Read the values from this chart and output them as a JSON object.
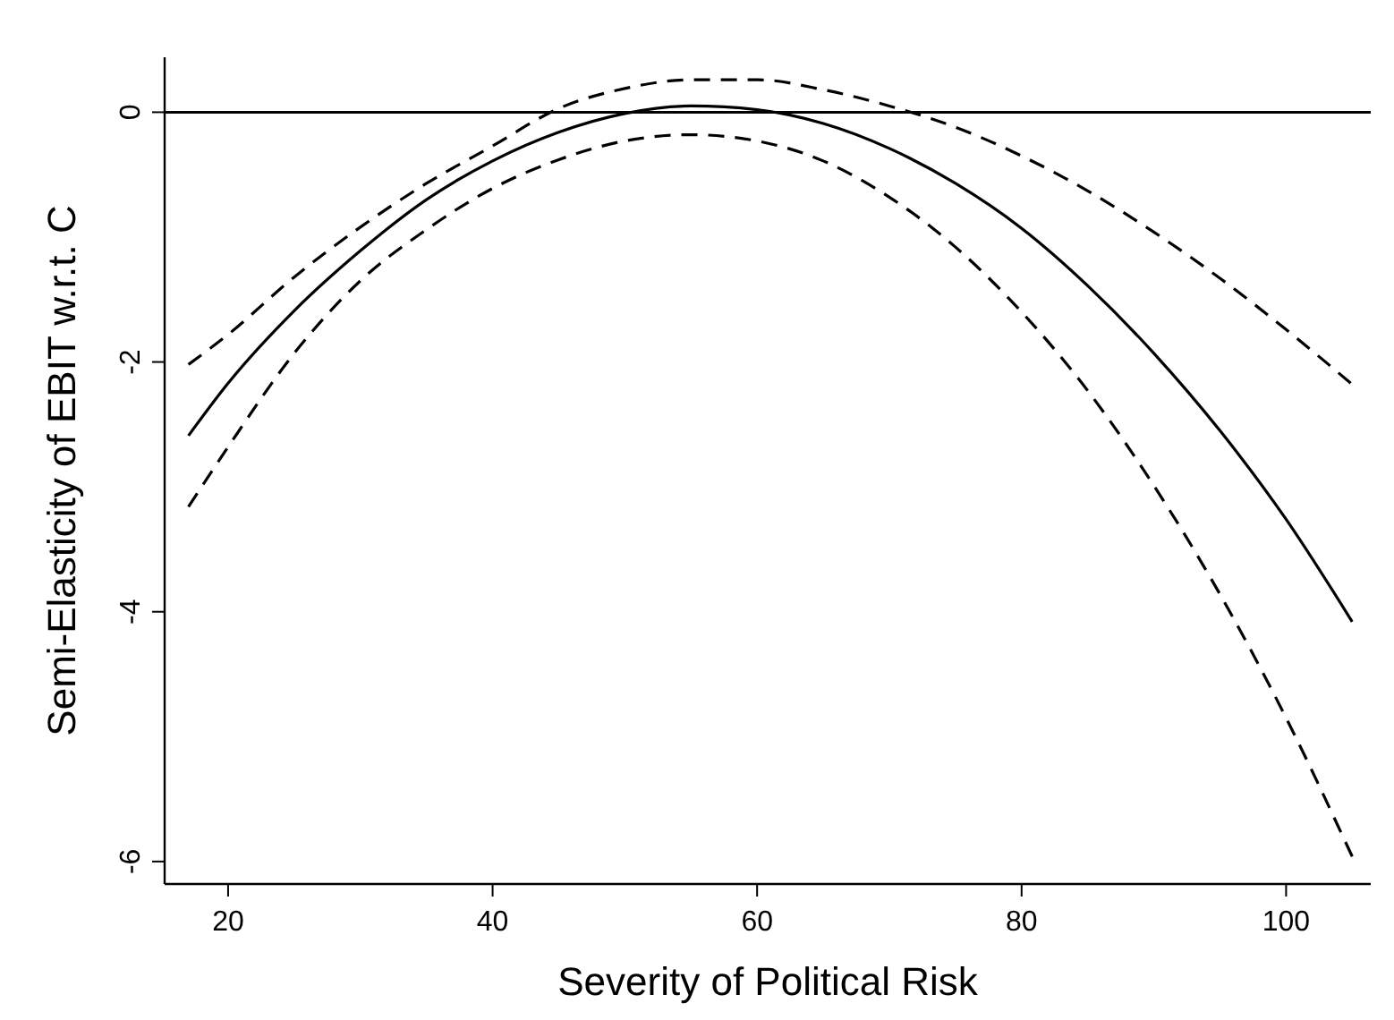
{
  "chart_data": {
    "type": "line",
    "xlabel": "Severity of Political Risk",
    "ylabel": "Semi-Elasticity of EBIT w.r.t. C",
    "x": [
      17,
      20,
      25,
      30,
      35,
      40,
      45,
      50,
      55,
      60,
      65,
      70,
      75,
      80,
      85,
      90,
      95,
      100,
      105
    ],
    "series": [
      {
        "color": "#000000",
        "line_style": "solid",
        "values": [
          -2.59,
          -2.17,
          -1.59,
          -1.11,
          -0.7,
          -0.39,
          -0.16,
          -0.01,
          0.05,
          0.02,
          -0.09,
          -0.29,
          -0.57,
          -0.93,
          -1.39,
          -1.93,
          -2.55,
          -3.26,
          -4.08
        ]
      },
      {
        "color": "#000000",
        "line_style": "dashed",
        "values": [
          -2.02,
          -1.78,
          -1.32,
          -0.92,
          -0.57,
          -0.27,
          0.03,
          0.19,
          0.26,
          0.26,
          0.18,
          0.05,
          -0.12,
          -0.35,
          -0.63,
          -0.96,
          -1.33,
          -1.74,
          -2.18
        ]
      },
      {
        "color": "#000000",
        "line_style": "dashed",
        "values": [
          -3.16,
          -2.68,
          -1.93,
          -1.35,
          -0.94,
          -0.61,
          -0.38,
          -0.23,
          -0.18,
          -0.23,
          -0.39,
          -0.68,
          -1.08,
          -1.6,
          -2.23,
          -2.99,
          -3.86,
          -4.85,
          -5.96
        ]
      }
    ],
    "xlim": [
      15.2,
      106.4
    ],
    "ylim": [
      -6.18,
      0.44
    ],
    "xticks": [
      20,
      40,
      60,
      80,
      100
    ],
    "yticks": [
      -6,
      -4,
      -2,
      0
    ],
    "ref_lines": [
      {
        "axis": "y",
        "value": 0,
        "color": "#000000"
      }
    ],
    "marker": "none"
  }
}
